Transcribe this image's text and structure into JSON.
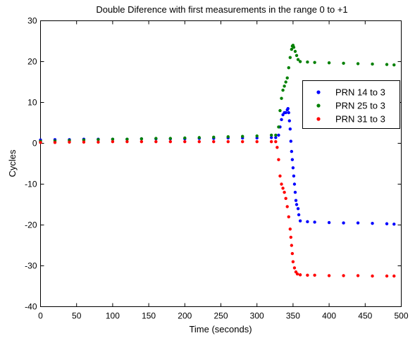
{
  "chart_data": {
    "type": "scatter",
    "title": "Double Diference with first measurements in the range 0 to +1",
    "xlabel": "Time (seconds)",
    "ylabel": "Cycles",
    "xlim": [
      0,
      500
    ],
    "ylim": [
      -40,
      30
    ],
    "xticks": [
      0,
      50,
      100,
      150,
      200,
      250,
      300,
      350,
      400,
      450,
      500
    ],
    "yticks": [
      -40,
      -30,
      -20,
      -10,
      0,
      10,
      20,
      30
    ],
    "grid": false,
    "legend_position": "top-right",
    "series": [
      {
        "name": "PRN 14 to 3",
        "color": "#0000ff",
        "points": [
          [
            0,
            0.8
          ],
          [
            20,
            0.9
          ],
          [
            40,
            0.9
          ],
          [
            60,
            1.0
          ],
          [
            80,
            1.0
          ],
          [
            100,
            1.0
          ],
          [
            120,
            1.0
          ],
          [
            140,
            1.1
          ],
          [
            160,
            1.1
          ],
          [
            180,
            1.1
          ],
          [
            200,
            1.1
          ],
          [
            220,
            1.2
          ],
          [
            240,
            1.2
          ],
          [
            260,
            1.3
          ],
          [
            280,
            1.3
          ],
          [
            300,
            1.3
          ],
          [
            320,
            1.4
          ],
          [
            326,
            1.4
          ],
          [
            330,
            2.0
          ],
          [
            332,
            4.0
          ],
          [
            334,
            5.8
          ],
          [
            336,
            7.0
          ],
          [
            338,
            7.5
          ],
          [
            340,
            7.5
          ],
          [
            342,
            8.2
          ],
          [
            343,
            8.5
          ],
          [
            344,
            7.5
          ],
          [
            345,
            5.5
          ],
          [
            346,
            3.5
          ],
          [
            347,
            0.5
          ],
          [
            348,
            -2.0
          ],
          [
            349,
            -4.0
          ],
          [
            350,
            -6.0
          ],
          [
            351,
            -8.0
          ],
          [
            352,
            -10.0
          ],
          [
            353,
            -12.0
          ],
          [
            354,
            -14.0
          ],
          [
            355,
            -15.0
          ],
          [
            357,
            -16.0
          ],
          [
            358,
            -17.5
          ],
          [
            360,
            -19.0
          ],
          [
            370,
            -19.2
          ],
          [
            380,
            -19.3
          ],
          [
            400,
            -19.4
          ],
          [
            420,
            -19.5
          ],
          [
            440,
            -19.5
          ],
          [
            460,
            -19.6
          ],
          [
            480,
            -19.7
          ],
          [
            490,
            -19.8
          ]
        ]
      },
      {
        "name": "PRN 25 to 3",
        "color": "#008000",
        "points": [
          [
            0,
            0.5
          ],
          [
            20,
            0.6
          ],
          [
            40,
            0.7
          ],
          [
            60,
            0.8
          ],
          [
            80,
            0.9
          ],
          [
            100,
            1.0
          ],
          [
            120,
            1.0
          ],
          [
            140,
            1.1
          ],
          [
            160,
            1.2
          ],
          [
            180,
            1.2
          ],
          [
            200,
            1.3
          ],
          [
            220,
            1.4
          ],
          [
            240,
            1.5
          ],
          [
            260,
            1.6
          ],
          [
            280,
            1.7
          ],
          [
            300,
            1.8
          ],
          [
            320,
            2.0
          ],
          [
            326,
            2.0
          ],
          [
            330,
            4.0
          ],
          [
            332,
            8.0
          ],
          [
            334,
            11.0
          ],
          [
            336,
            13.0
          ],
          [
            338,
            14.0
          ],
          [
            340,
            15.0
          ],
          [
            342,
            16.0
          ],
          [
            344,
            18.5
          ],
          [
            346,
            21.0
          ],
          [
            348,
            23.0
          ],
          [
            349,
            23.8
          ],
          [
            350,
            24.0
          ],
          [
            351,
            23.5
          ],
          [
            353,
            22.5
          ],
          [
            355,
            21.5
          ],
          [
            357,
            20.5
          ],
          [
            360,
            20.0
          ],
          [
            370,
            19.9
          ],
          [
            380,
            19.8
          ],
          [
            400,
            19.7
          ],
          [
            420,
            19.6
          ],
          [
            440,
            19.5
          ],
          [
            460,
            19.4
          ],
          [
            480,
            19.3
          ],
          [
            490,
            19.2
          ]
        ]
      },
      {
        "name": "PRN 31 to 3",
        "color": "#ff0000",
        "points": [
          [
            0,
            0.2
          ],
          [
            20,
            0.2
          ],
          [
            40,
            0.3
          ],
          [
            60,
            0.3
          ],
          [
            80,
            0.3
          ],
          [
            100,
            0.4
          ],
          [
            120,
            0.4
          ],
          [
            140,
            0.4
          ],
          [
            160,
            0.4
          ],
          [
            180,
            0.4
          ],
          [
            200,
            0.4
          ],
          [
            220,
            0.4
          ],
          [
            240,
            0.4
          ],
          [
            260,
            0.4
          ],
          [
            280,
            0.4
          ],
          [
            300,
            0.4
          ],
          [
            320,
            0.4
          ],
          [
            326,
            0.4
          ],
          [
            328,
            -1.0
          ],
          [
            330,
            -4.0
          ],
          [
            332,
            -8.0
          ],
          [
            334,
            -10.0
          ],
          [
            336,
            -11.0
          ],
          [
            338,
            -12.0
          ],
          [
            340,
            -13.5
          ],
          [
            342,
            -15.5
          ],
          [
            344,
            -18.0
          ],
          [
            346,
            -21.0
          ],
          [
            347,
            -23.0
          ],
          [
            348,
            -25.0
          ],
          [
            349,
            -27.0
          ],
          [
            350,
            -29.0
          ],
          [
            352,
            -30.5
          ],
          [
            354,
            -31.5
          ],
          [
            356,
            -32.0
          ],
          [
            360,
            -32.2
          ],
          [
            370,
            -32.3
          ],
          [
            380,
            -32.3
          ],
          [
            400,
            -32.4
          ],
          [
            420,
            -32.4
          ],
          [
            440,
            -32.4
          ],
          [
            460,
            -32.5
          ],
          [
            480,
            -32.5
          ],
          [
            490,
            -32.5
          ]
        ]
      }
    ]
  }
}
